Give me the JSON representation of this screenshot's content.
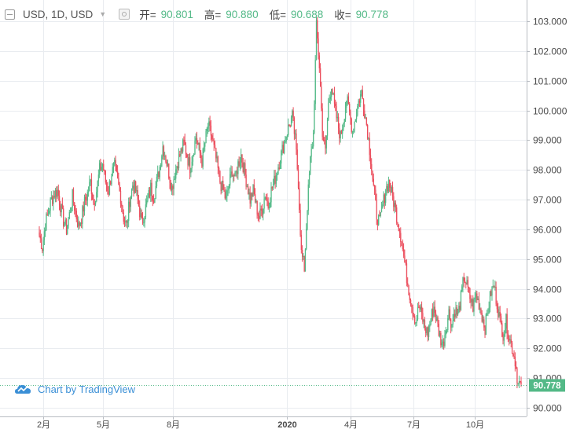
{
  "header": {
    "symbol": "USD, 1D, USD",
    "open_label": "开=",
    "open_value": "90.801",
    "high_label": "高=",
    "high_value": "90.880",
    "low_label": "低=",
    "low_value": "90.688",
    "close_label": "收=",
    "close_value": "90.778"
  },
  "watermark": {
    "text": "Chart by TradingView",
    "icon": "tradingview-cloud-icon"
  },
  "colors": {
    "up": "#53b987",
    "down": "#eb4d5c",
    "grid": "#e9ecf0",
    "axis_text": "#4a4a4a",
    "price_tag": "#53b987"
  },
  "chart_data": {
    "type": "candlestick",
    "title": "",
    "xlabel": "",
    "ylabel": "",
    "x_ticks": [
      "2月",
      "5月",
      "8月",
      "2020",
      "4月",
      "7月",
      "10月"
    ],
    "y_ticks": [
      "103.000",
      "102.000",
      "101.000",
      "100.000",
      "99.000",
      "98.000",
      "97.000",
      "96.000",
      "95.000",
      "94.000",
      "93.000",
      "92.000",
      "91.000",
      "90.000"
    ],
    "ylim": [
      89.8,
      103.4
    ],
    "last_price": "90.778",
    "series": [
      {
        "values": [
          95.8,
          95.4,
          96.2,
          96.6,
          97.0,
          97.2,
          97.3,
          96.8,
          96.3,
          96.0,
          96.5,
          97.1,
          96.6,
          96.1,
          96.4,
          96.9,
          97.2,
          97.6,
          96.9,
          97.3,
          98.0,
          98.2,
          97.6,
          97.3,
          97.9,
          98.1,
          97.6,
          97.1,
          96.4,
          96.1,
          97.0,
          97.5,
          97.3,
          96.8,
          96.2,
          96.6,
          97.0,
          97.4,
          97.1,
          97.6,
          98.1,
          98.8,
          98.4,
          97.9,
          97.4,
          97.9,
          98.3,
          98.6,
          98.9,
          98.5,
          98.1,
          98.6,
          99.1,
          98.7,
          98.3,
          98.9,
          99.5,
          99.2,
          98.7,
          98.2,
          97.6,
          97.3,
          97.0,
          97.5,
          98.0,
          97.7,
          98.2,
          98.5,
          98.0,
          97.5,
          97.0,
          97.3,
          96.8,
          96.4,
          96.7,
          97.2,
          96.8,
          97.3,
          97.6,
          98.0,
          98.4,
          98.8,
          99.2,
          99.5,
          99.8,
          99.0,
          97.6,
          95.2,
          94.7,
          96.8,
          98.3,
          99.2,
          102.8,
          101.5,
          99.3,
          98.6,
          100.2,
          100.9,
          100.1,
          99.6,
          99.1,
          99.7,
          100.4,
          99.9,
          99.3,
          99.8,
          100.3,
          100.6,
          100.0,
          99.3,
          98.4,
          97.4,
          96.5,
          96.2,
          96.8,
          97.3,
          97.6,
          97.2,
          96.8,
          96.3,
          95.8,
          95.1,
          94.4,
          93.8,
          93.3,
          92.9,
          93.4,
          93.1,
          92.7,
          92.5,
          93.0,
          93.4,
          92.9,
          92.4,
          92.1,
          92.7,
          93.2,
          92.8,
          93.3,
          93.1,
          93.7,
          94.4,
          94.1,
          93.7,
          93.4,
          93.8,
          93.5,
          93.1,
          92.7,
          93.3,
          93.9,
          94.1,
          93.5,
          92.9,
          92.5,
          92.9,
          92.4,
          92.0,
          91.6,
          90.8,
          90.778
        ]
      }
    ]
  }
}
